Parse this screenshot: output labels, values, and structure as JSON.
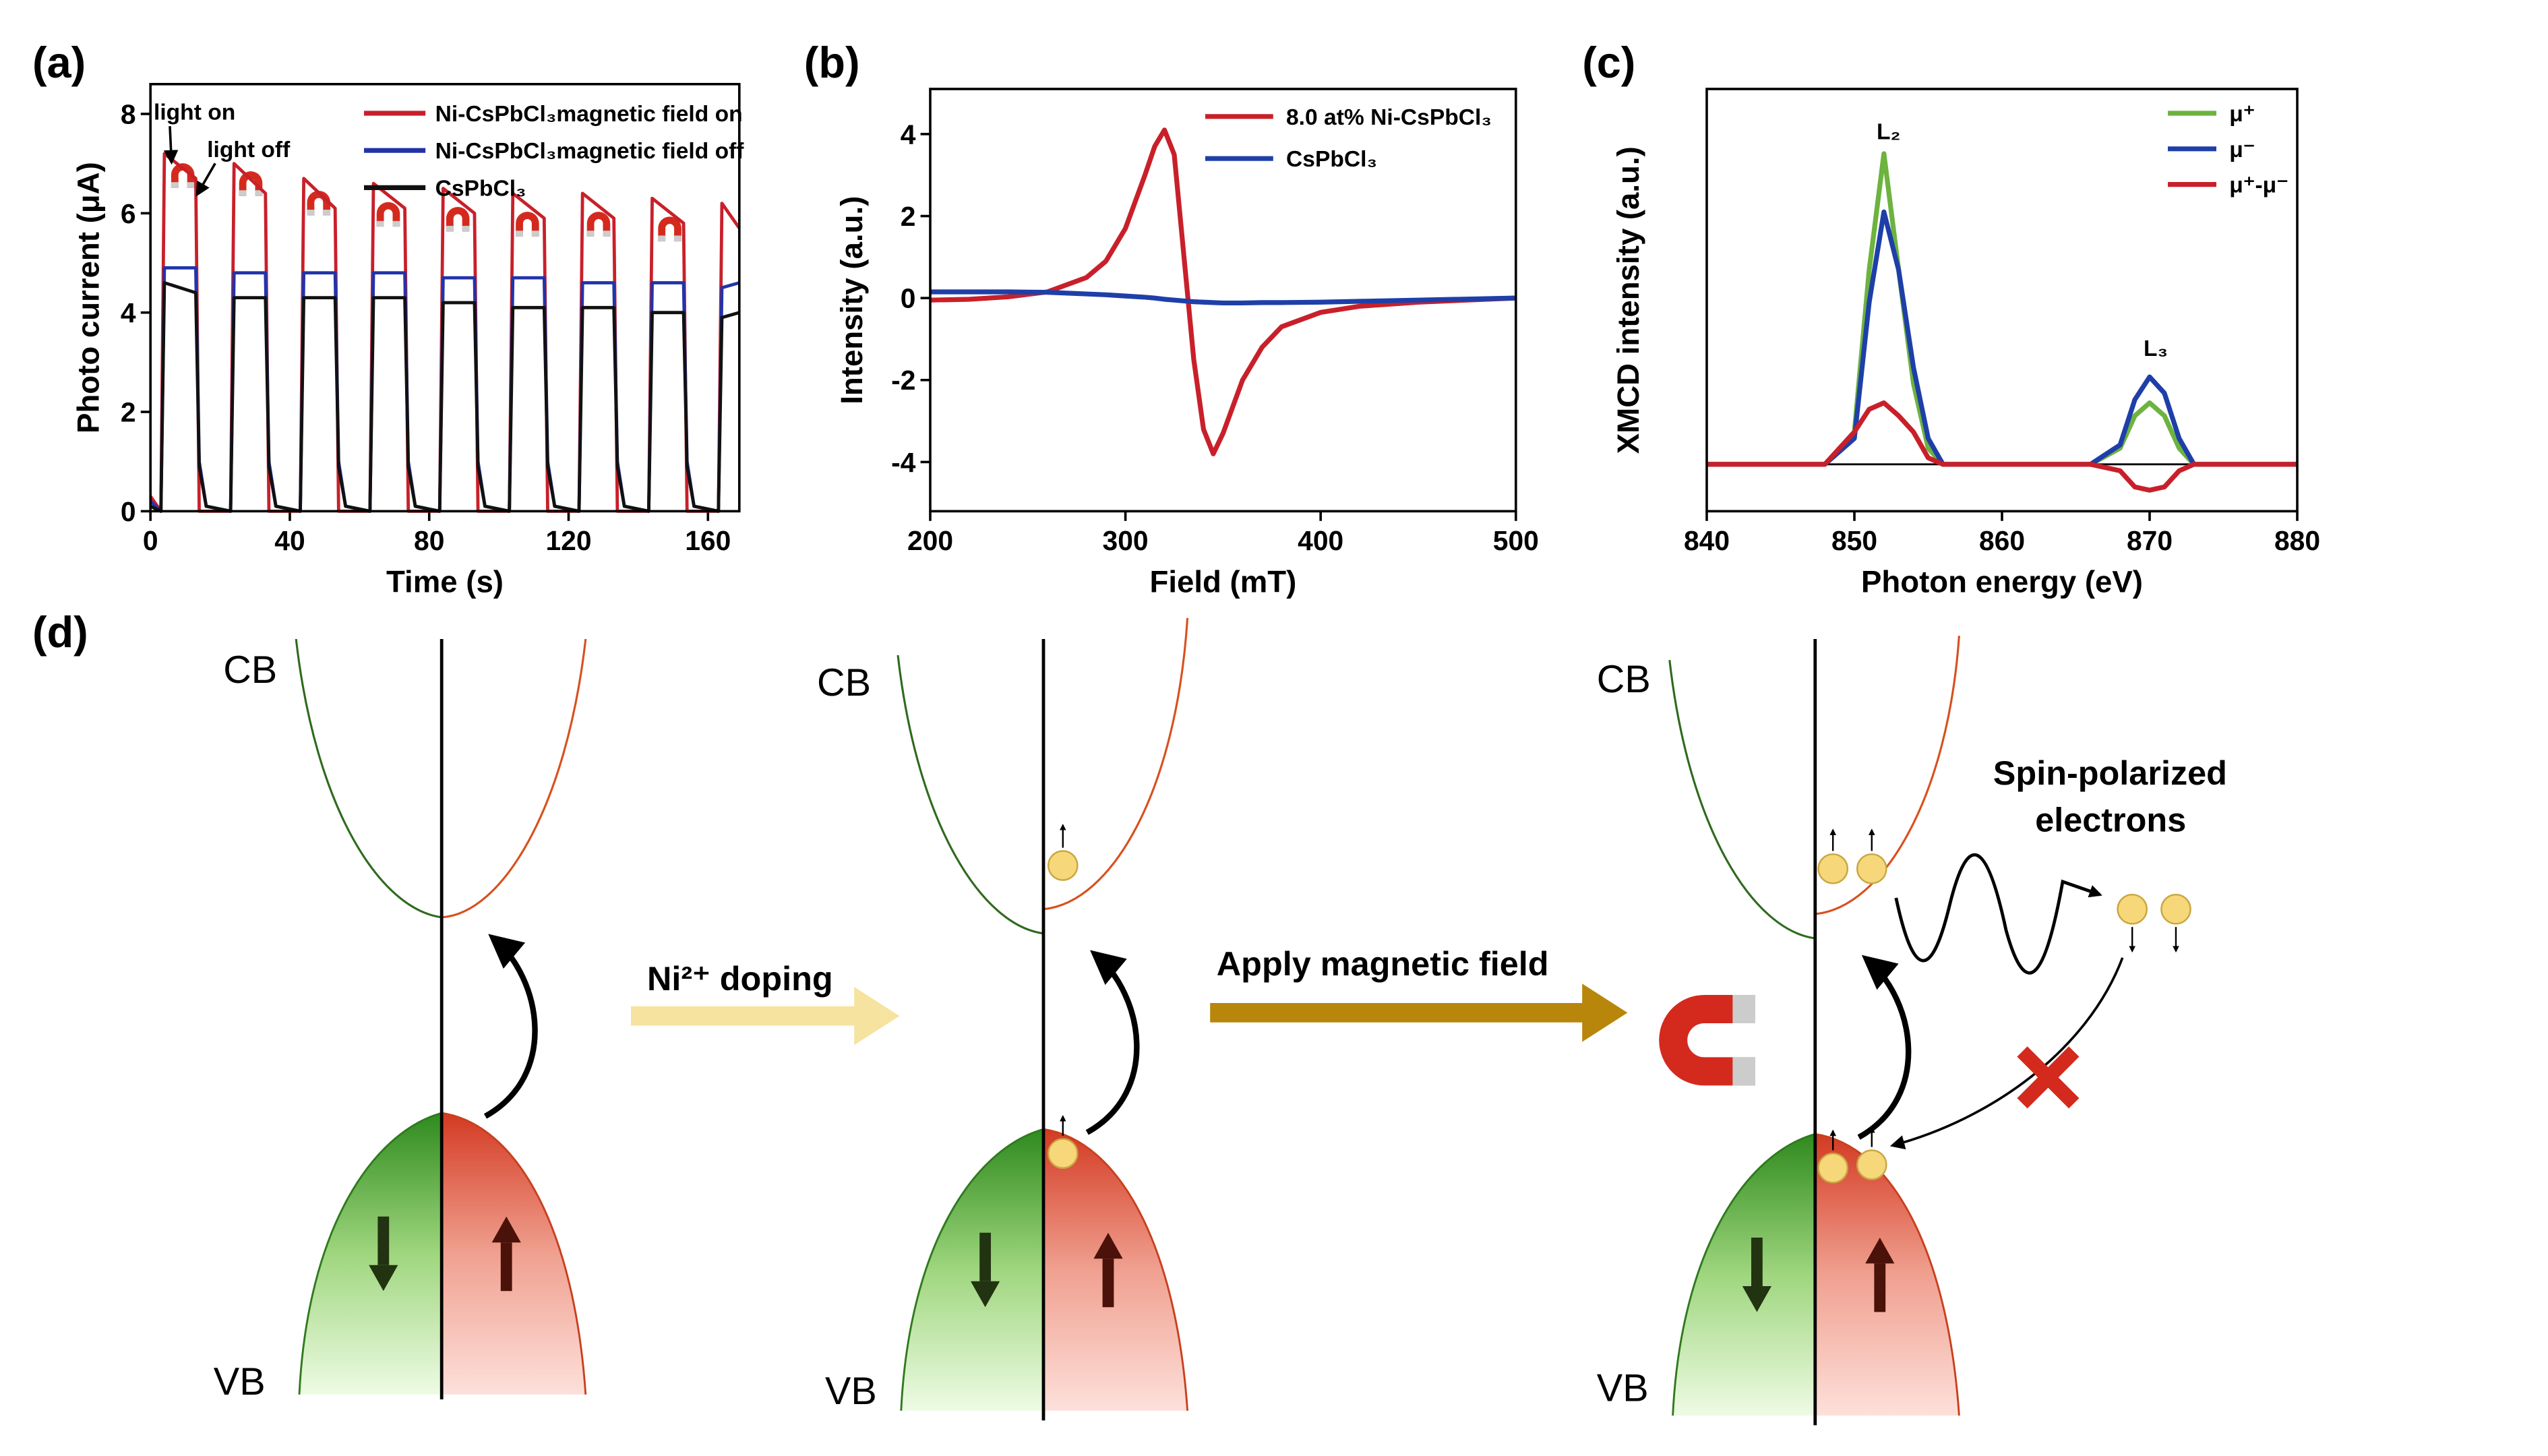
{
  "chart_data": [
    {
      "type": "line",
      "label": "(a)",
      "xlabel": "Time (s)",
      "ylabel": "Photo current (μA)",
      "xlim": [
        0,
        169
      ],
      "xticks": [
        0,
        40,
        80,
        120,
        160
      ],
      "ylim": [
        0,
        8.6
      ],
      "yticks": [
        0,
        2,
        4,
        6,
        8
      ],
      "x": [
        0,
        3,
        4,
        13,
        14,
        16,
        23,
        24,
        33,
        34,
        36,
        43,
        44,
        53,
        54,
        56,
        63,
        64,
        73,
        74,
        76,
        83,
        84,
        93,
        94,
        96,
        103,
        104,
        113,
        114,
        116,
        123,
        124,
        133,
        134,
        136,
        143,
        144,
        153,
        154,
        156,
        163,
        164,
        169
      ],
      "series": [
        {
          "name": "Ni-CsPbCl₃magnetic field on",
          "color": "#c8202a",
          "values": [
            0.3,
            0,
            7.2,
            6.7,
            0,
            0,
            0,
            7.0,
            6.4,
            0,
            0,
            0,
            6.7,
            6.1,
            0,
            0,
            0,
            6.6,
            6.1,
            0,
            0,
            0,
            6.5,
            6.0,
            0,
            0,
            0,
            6.4,
            5.9,
            0,
            0,
            0,
            6.4,
            5.9,
            0,
            0,
            0,
            6.3,
            5.8,
            0,
            0,
            0,
            6.2,
            5.7
          ]
        },
        {
          "name": "Ni-CsPbCl₃magnetic field off",
          "color": "#2233aa",
          "values": [
            0.2,
            0,
            4.9,
            4.9,
            1.0,
            0.1,
            0,
            4.8,
            4.8,
            1.0,
            0.1,
            0,
            4.8,
            4.8,
            1.0,
            0.1,
            0,
            4.8,
            4.8,
            1.0,
            0.1,
            0,
            4.7,
            4.7,
            1.0,
            0.1,
            0,
            4.7,
            4.7,
            1.0,
            0.1,
            0,
            4.6,
            4.6,
            1.0,
            0.1,
            0,
            4.6,
            4.6,
            1.0,
            0.1,
            0,
            4.5,
            4.6
          ]
        },
        {
          "name": "CsPbCl₃",
          "color": "#111111",
          "values": [
            0.1,
            0,
            4.6,
            4.4,
            0.9,
            0.1,
            0,
            4.3,
            4.3,
            0.9,
            0.1,
            0,
            4.3,
            4.3,
            0.9,
            0.1,
            0,
            4.3,
            4.3,
            0.9,
            0.1,
            0,
            4.2,
            4.2,
            0.9,
            0.1,
            0,
            4.1,
            4.1,
            0.9,
            0.1,
            0,
            4.1,
            4.1,
            0.9,
            0.1,
            0,
            4.0,
            4.0,
            0.9,
            0.1,
            0,
            3.9,
            4.0
          ]
        }
      ],
      "annotations": [
        "light on",
        "light off"
      ]
    },
    {
      "type": "line",
      "label": "(b)",
      "xlabel": "Field (mT)",
      "ylabel": "Intensity (a.u.)",
      "xlim": [
        200,
        500
      ],
      "xticks": [
        200,
        300,
        400,
        500
      ],
      "ylim": [
        -5.2,
        5.1
      ],
      "yticks": [
        -4,
        -2,
        0,
        2,
        4
      ],
      "x": [
        200,
        220,
        240,
        260,
        280,
        290,
        300,
        310,
        315,
        320,
        325,
        330,
        335,
        340,
        345,
        350,
        360,
        370,
        380,
        400,
        420,
        450,
        500
      ],
      "series": [
        {
          "name": "8.0 at% Ni-CsPbCl₃",
          "color": "#c8202a",
          "values": [
            -0.05,
            -0.03,
            0.03,
            0.15,
            0.5,
            0.9,
            1.7,
            3.0,
            3.7,
            4.1,
            3.5,
            1.0,
            -1.5,
            -3.2,
            -3.8,
            -3.3,
            -2.0,
            -1.2,
            -0.7,
            -0.35,
            -0.2,
            -0.1,
            0
          ]
        },
        {
          "name": "CsPbCl₃",
          "color": "#1f3fa8",
          "values": [
            0.15,
            0.15,
            0.15,
            0.14,
            0.1,
            0.08,
            0.05,
            0.02,
            0,
            -0.03,
            -0.05,
            -0.07,
            -0.09,
            -0.1,
            -0.11,
            -0.12,
            -0.12,
            -0.11,
            -0.11,
            -0.1,
            -0.08,
            -0.05,
            0
          ]
        }
      ]
    },
    {
      "type": "line",
      "label": "(c)",
      "xlabel": "Photon energy (eV)",
      "ylabel": "XMCD intensity (a.u.)",
      "xlim": [
        840,
        880
      ],
      "xticks": [
        840,
        850,
        860,
        870,
        880
      ],
      "ylim": [
        -0.145,
        1.16
      ],
      "x": [
        840,
        848,
        850,
        851,
        852,
        853,
        854,
        855,
        856,
        860,
        866,
        868,
        869,
        870,
        871,
        872,
        873,
        880
      ],
      "series": [
        {
          "name": "μ⁺",
          "color": "#6db33f",
          "values": [
            0,
            0,
            0.1,
            0.6,
            0.96,
            0.6,
            0.25,
            0.05,
            0,
            0,
            0,
            0.05,
            0.15,
            0.19,
            0.15,
            0.05,
            0,
            0
          ]
        },
        {
          "name": "μ⁻",
          "color": "#1f3fa8",
          "values": [
            0,
            0,
            0.08,
            0.5,
            0.78,
            0.6,
            0.3,
            0.08,
            0,
            0,
            0,
            0.06,
            0.2,
            0.27,
            0.22,
            0.08,
            0,
            0
          ]
        },
        {
          "name": "μ⁺-μ⁻",
          "color": "#c8202a",
          "values": [
            0,
            0,
            0.1,
            0.17,
            0.19,
            0.15,
            0.1,
            0.02,
            0,
            0,
            0,
            -0.02,
            -0.07,
            -0.08,
            -0.07,
            -0.02,
            0,
            0
          ]
        }
      ],
      "annotations": [
        "L₂",
        "L₃"
      ]
    }
  ],
  "diagram": {
    "label": "(d)",
    "panels": [
      {
        "cb": "CB",
        "vb": "VB"
      },
      {
        "cb": "CB",
        "vb": "VB"
      },
      {
        "cb": "CB",
        "vb": "VB"
      }
    ],
    "step1": "Ni²⁺ doping",
    "step2": "Apply magnetic field",
    "spin_label": [
      "Spin-polarized",
      "electrons"
    ]
  }
}
